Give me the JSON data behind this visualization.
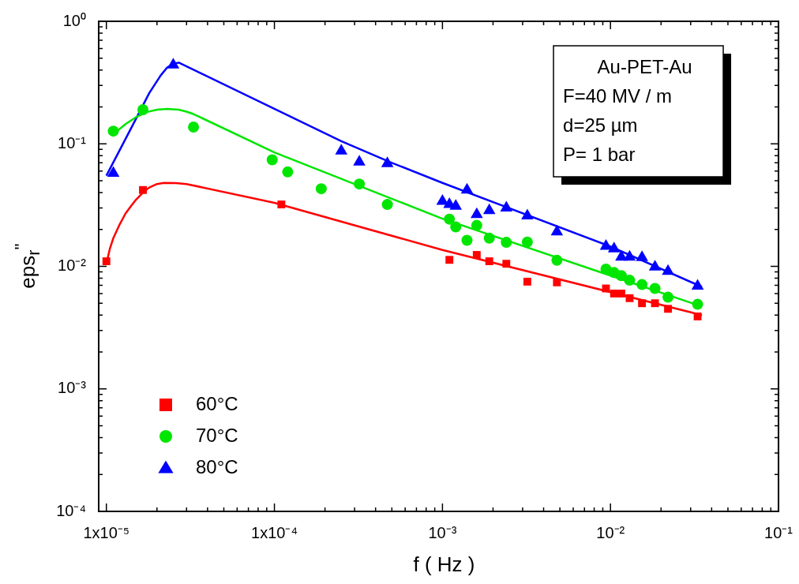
{
  "chart_data": {
    "type": "scatter",
    "xlabel": "f ( Hz )",
    "ylabel": "eps$_{r}$$^{''}$",
    "log": "xy",
    "grid": false,
    "legend": "bottom left",
    "xlim": [
      9e-06,
      0.1
    ],
    "xticks": [
      {
        "value": 1e-05,
        "label": "1x10⁻⁵"
      },
      {
        "value": 2e-05,
        "label": null
      },
      {
        "value": 3e-05,
        "label": null
      },
      {
        "value": 4e-05,
        "label": null
      },
      {
        "value": 5e-05,
        "label": null
      },
      {
        "value": 6e-05,
        "label": null
      },
      {
        "value": 7e-05,
        "label": null
      },
      {
        "value": 8e-05,
        "label": null
      },
      {
        "value": 9e-05,
        "label": null
      },
      {
        "value": 0.0001,
        "label": "1x10⁻⁴"
      },
      {
        "value": 0.0002,
        "label": null
      },
      {
        "value": 0.0003,
        "label": null
      },
      {
        "value": 0.0004,
        "label": null
      },
      {
        "value": 0.0005,
        "label": null
      },
      {
        "value": 0.0006,
        "label": null
      },
      {
        "value": 0.0007,
        "label": null
      },
      {
        "value": 0.0008,
        "label": null
      },
      {
        "value": 0.0009,
        "label": null
      },
      {
        "value": 0.001,
        "label": "10⁻³"
      },
      {
        "value": 0.002,
        "label": null
      },
      {
        "value": 0.003,
        "label": null
      },
      {
        "value": 0.004,
        "label": null
      },
      {
        "value": 0.005,
        "label": null
      },
      {
        "value": 0.006,
        "label": null
      },
      {
        "value": 0.007,
        "label": null
      },
      {
        "value": 0.008,
        "label": null
      },
      {
        "value": 0.009,
        "label": null
      },
      {
        "value": 0.01,
        "label": "10⁻²"
      },
      {
        "value": 0.02,
        "label": null
      },
      {
        "value": 0.03,
        "label": null
      },
      {
        "value": 0.04,
        "label": null
      },
      {
        "value": 0.05,
        "label": null
      },
      {
        "value": 0.06,
        "label": null
      },
      {
        "value": 0.07,
        "label": null
      },
      {
        "value": 0.08,
        "label": null
      },
      {
        "value": 0.09,
        "label": null
      },
      {
        "value": 0.1,
        "label": "10⁻¹"
      }
    ],
    "ylim": [
      0.0001,
      1
    ],
    "yticks": [
      {
        "value": 0.0001,
        "label": "10⁻⁴"
      },
      {
        "value": 0.0002,
        "label": null
      },
      {
        "value": 0.0003,
        "label": null
      },
      {
        "value": 0.0004,
        "label": null
      },
      {
        "value": 0.0005,
        "label": null
      },
      {
        "value": 0.0006,
        "label": null
      },
      {
        "value": 0.0007,
        "label": null
      },
      {
        "value": 0.0008,
        "label": null
      },
      {
        "value": 0.0009,
        "label": null
      },
      {
        "value": 0.001,
        "label": "10⁻³"
      },
      {
        "value": 0.002,
        "label": null
      },
      {
        "value": 0.003,
        "label": null
      },
      {
        "value": 0.004,
        "label": null
      },
      {
        "value": 0.005,
        "label": null
      },
      {
        "value": 0.006,
        "label": null
      },
      {
        "value": 0.007,
        "label": null
      },
      {
        "value": 0.008,
        "label": null
      },
      {
        "value": 0.009,
        "label": null
      },
      {
        "value": 0.01,
        "label": "10⁻²"
      },
      {
        "value": 0.02,
        "label": null
      },
      {
        "value": 0.03,
        "label": null
      },
      {
        "value": 0.04,
        "label": null
      },
      {
        "value": 0.05,
        "label": null
      },
      {
        "value": 0.06,
        "label": null
      },
      {
        "value": 0.07,
        "label": null
      },
      {
        "value": 0.08,
        "label": null
      },
      {
        "value": 0.09,
        "label": null
      },
      {
        "value": 0.1,
        "label": "10⁻¹"
      },
      {
        "value": 0.2,
        "label": null
      },
      {
        "value": 0.3,
        "label": null
      },
      {
        "value": 0.4,
        "label": null
      },
      {
        "value": 0.5,
        "label": null
      },
      {
        "value": 0.6,
        "label": null
      },
      {
        "value": 0.7,
        "label": null
      },
      {
        "value": 0.8,
        "label": null
      },
      {
        "value": 0.9,
        "label": null
      },
      {
        "value": 1,
        "label": "10⁰"
      }
    ],
    "annotations": [
      "Au-PET-Au",
      "F=40 MV / m",
      "d=25 µm",
      "P= 1 bar"
    ],
    "series": [
      {
        "name": "60°C",
        "type": "scatter",
        "marker": "square",
        "color": "#ff0000",
        "x": [
          1e-05,
          1.65e-05,
          0.00011,
          0.0011,
          0.0016,
          0.0019,
          0.0024,
          0.0032,
          0.0048,
          0.0094,
          0.0105,
          0.0116,
          0.013,
          0.0154,
          0.0184,
          0.022,
          0.033
        ],
        "values": [
          0.011,
          0.042,
          0.032,
          0.0113,
          0.0124,
          0.011,
          0.0105,
          0.0075,
          0.0074,
          0.0066,
          0.006,
          0.006,
          0.0055,
          0.005,
          0.005,
          0.0045,
          0.0039
        ]
      },
      {
        "name": "70°C",
        "type": "scatter",
        "marker": "circle",
        "color": "#00e600",
        "x": [
          1.1e-05,
          1.65e-05,
          3.3e-05,
          9.7e-05,
          0.00012,
          0.00019,
          0.00032,
          0.00047,
          0.0011,
          0.0012,
          0.0014,
          0.0016,
          0.0019,
          0.0024,
          0.0032,
          0.0048,
          0.0094,
          0.0105,
          0.0116,
          0.013,
          0.0154,
          0.0184,
          0.022,
          0.033
        ],
        "values": [
          0.127,
          0.19,
          0.137,
          0.074,
          0.059,
          0.043,
          0.047,
          0.032,
          0.0243,
          0.021,
          0.0163,
          0.0216,
          0.017,
          0.0157,
          0.0158,
          0.0112,
          0.0095,
          0.0089,
          0.0084,
          0.0077,
          0.0071,
          0.0066,
          0.0056,
          0.0049
        ]
      },
      {
        "name": "80°C",
        "type": "scatter",
        "marker": "triangle",
        "color": "#0000ff",
        "x": [
          1.1e-05,
          2.5e-05,
          0.00025,
          0.00032,
          0.00047,
          0.001,
          0.0011,
          0.0012,
          0.0014,
          0.0016,
          0.0019,
          0.0024,
          0.0032,
          0.0048,
          0.0094,
          0.0105,
          0.0116,
          0.013,
          0.0154,
          0.0184,
          0.022,
          0.033
        ],
        "values": [
          0.0576,
          0.44,
          0.0875,
          0.071,
          0.069,
          0.034,
          0.032,
          0.031,
          0.042,
          0.0265,
          0.0286,
          0.03,
          0.0258,
          0.0191,
          0.0146,
          0.0139,
          0.0119,
          0.0119,
          0.0118,
          0.0099,
          0.0091,
          0.0069
        ]
      },
      {
        "type": "line",
        "marker": "none",
        "color": "#ff0000",
        "x": [
          1e-05,
          1.05e-05,
          1.1e-05,
          1.2e-05,
          1.3e-05,
          1.4e-05,
          1.5e-05,
          1.65e-05,
          1.8e-05,
          2e-05,
          2.2e-05,
          2.6e-05,
          3e-05,
          0.0001,
          0.001,
          0.035
        ],
        "values": [
          0.0105,
          0.014,
          0.017,
          0.022,
          0.027,
          0.031,
          0.035,
          0.04,
          0.044,
          0.047,
          0.048,
          0.0478,
          0.047,
          0.033,
          0.0136,
          0.004
        ]
      },
      {
        "type": "line",
        "marker": "none",
        "color": "#00e600",
        "x": [
          1.1e-05,
          1.3e-05,
          1.5e-05,
          1.75e-05,
          2e-05,
          2.3e-05,
          2.7e-05,
          3e-05,
          3.3e-05,
          0.0001,
          0.001,
          0.035
        ],
        "values": [
          0.12,
          0.145,
          0.165,
          0.182,
          0.19,
          0.193,
          0.19,
          0.183,
          0.175,
          0.085,
          0.0245,
          0.0047
        ]
      },
      {
        "type": "line",
        "marker": "none",
        "color": "#0000ff",
        "x": [
          1e-05,
          1.5e-05,
          1.8e-05,
          2.1e-05,
          2.3e-05,
          2.5e-05,
          2.7e-05,
          0.00025,
          0.0005,
          0.001,
          0.01,
          0.035
        ],
        "values": [
          0.055,
          0.16,
          0.26,
          0.36,
          0.42,
          0.45,
          0.46,
          0.105,
          0.07,
          0.048,
          0.0145,
          0.0068
        ]
      }
    ]
  }
}
